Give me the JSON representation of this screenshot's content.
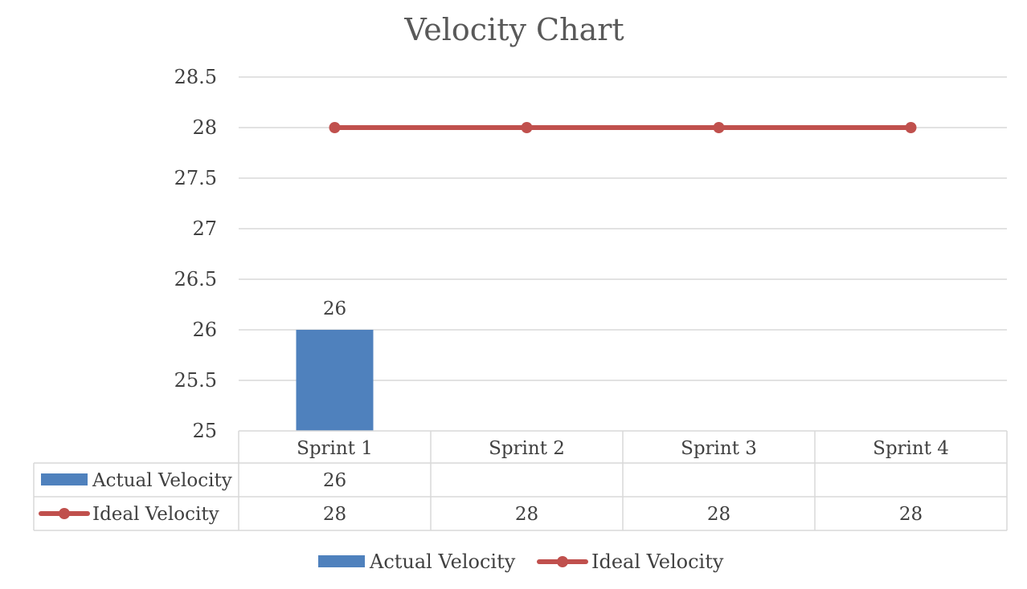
{
  "chart_data": {
    "type": "bar",
    "title": "Velocity Chart",
    "categories": [
      "Sprint 1",
      "Sprint 2",
      "Sprint 3",
      "Sprint 4"
    ],
    "ylim": [
      25,
      28.5
    ],
    "yticks": [
      "25",
      "25.5",
      "26",
      "26.5",
      "27",
      "27.5",
      "28",
      "28.5"
    ],
    "grid": true,
    "legend_position": "bottom",
    "data_table": true,
    "series": [
      {
        "name": "Actual Velocity",
        "kind": "bar",
        "color": "#4f81bd",
        "values": [
          26,
          null,
          null,
          null
        ],
        "display": [
          "26",
          "",
          "",
          ""
        ],
        "data_labels": [
          "26"
        ]
      },
      {
        "name": "Ideal Velocity",
        "kind": "line",
        "color": "#c0504d",
        "values": [
          28,
          28,
          28,
          28
        ],
        "display": [
          "28",
          "28",
          "28",
          "28"
        ]
      }
    ]
  }
}
